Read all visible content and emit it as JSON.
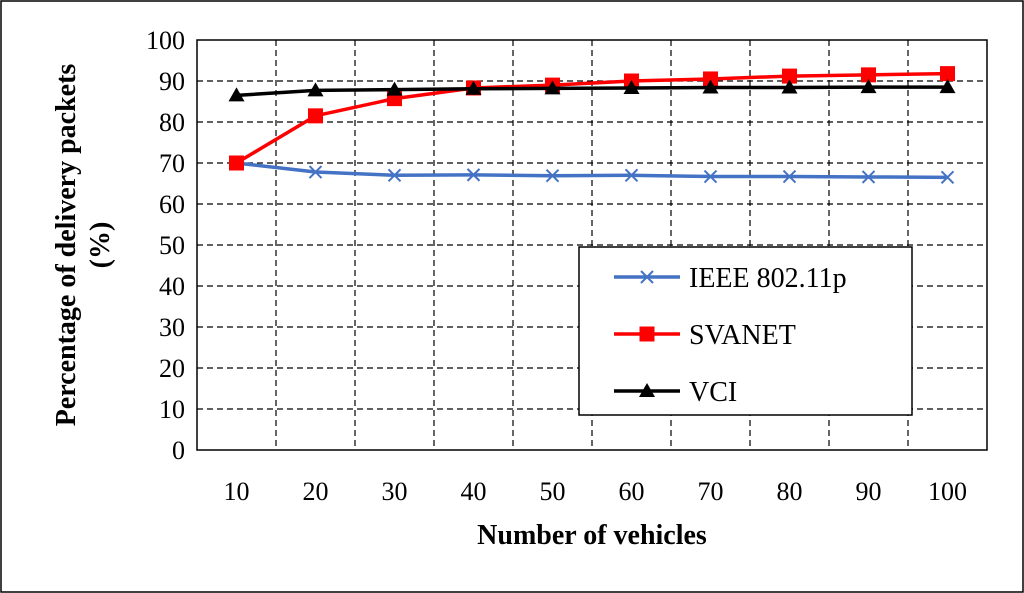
{
  "chart_data": {
    "type": "line",
    "xlabel": "Number of vehicles",
    "ylabel_line1": "Percentage of delivery packets",
    "ylabel_line2": "(%)",
    "x": [
      10,
      20,
      30,
      40,
      50,
      60,
      70,
      80,
      90,
      100
    ],
    "x_tick_labels": [
      "10",
      "20",
      "30",
      "40",
      "50",
      "60",
      "70",
      "80",
      "90",
      "100"
    ],
    "ylim": [
      0,
      100
    ],
    "y_tick_labels": [
      "0",
      "10",
      "20",
      "30",
      "40",
      "50",
      "60",
      "70",
      "80",
      "90",
      "100"
    ],
    "grid": true,
    "legend_position": "center-right",
    "series": [
      {
        "name": "IEEE 802.11p",
        "color": "#4472C4",
        "marker": "x",
        "values": [
          70,
          67.8,
          67.0,
          67.1,
          66.9,
          67.0,
          66.7,
          66.7,
          66.6,
          66.5
        ]
      },
      {
        "name": "SVANET",
        "color": "#FF0000",
        "marker": "square",
        "values": [
          70,
          81.5,
          85.7,
          88.3,
          89.0,
          90.0,
          90.5,
          91.2,
          91.5,
          91.8
        ]
      },
      {
        "name": "VCI",
        "color": "#000000",
        "marker": "triangle",
        "values": [
          86.5,
          87.7,
          87.9,
          88.1,
          88.2,
          88.3,
          88.4,
          88.4,
          88.5,
          88.5
        ]
      }
    ]
  }
}
